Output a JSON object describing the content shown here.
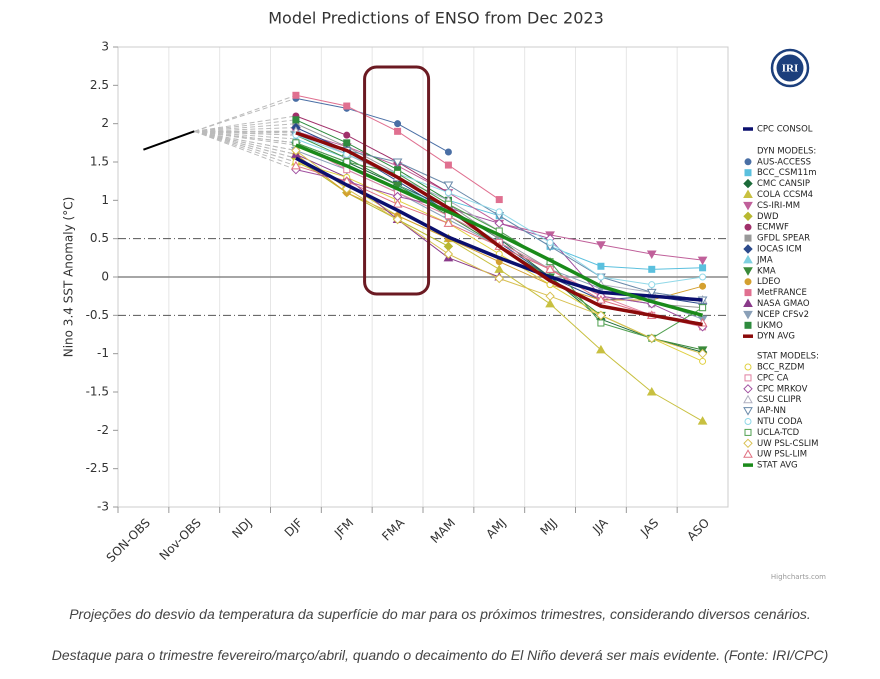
{
  "chart_data": {
    "type": "line",
    "title": "Model Predictions of ENSO from Dec 2023",
    "y_axis_label": "Nino 3.4 SST Anomaly (°C)",
    "credits": "Highcharts.com",
    "logo": "IRI",
    "categories": [
      "SON-OBS",
      "Nov-OBS",
      "NDJ",
      "DJF",
      "JFM",
      "FMA",
      "MAM",
      "AMJ",
      "MJJ",
      "JJA",
      "JAS",
      "ASO"
    ],
    "ylim": [
      -3,
      3
    ],
    "yticks": [
      -3,
      -2.5,
      -2,
      -1.5,
      -1,
      -0.5,
      0,
      0.5,
      1,
      1.5,
      2,
      2.5,
      3
    ],
    "grid": "vertical",
    "highlight": "FMA",
    "plot_lines": [
      {
        "value": 0,
        "style": "solid"
      },
      {
        "value": 0.5,
        "style": "dashdot"
      },
      {
        "value": -0.5,
        "style": "dashdot"
      }
    ],
    "observed": {
      "color": "#000000",
      "values": [
        1.66,
        1.9,
        null,
        null,
        null,
        null,
        null,
        null,
        null,
        null,
        null,
        null
      ]
    },
    "series": [
      {
        "name": "CPC CONSOL",
        "color": "#0a0f6e",
        "marker": "none",
        "thick": true,
        "values": [
          null,
          null,
          null,
          1.55,
          1.2,
          0.87,
          0.52,
          0.25,
          0.0,
          -0.2,
          -0.25,
          -0.3
        ]
      }
    ],
    "groups": [
      {
        "title": "DYN MODELS:",
        "series": [
          {
            "name": "AUS-ACCESS",
            "color": "#4a6fa5",
            "marker": "circle",
            "values": [
              null,
              null,
              null,
              2.33,
              2.2,
              2.0,
              1.63,
              null,
              null,
              null,
              null,
              null
            ]
          },
          {
            "name": "BCC_CSM11m",
            "color": "#5bc0de",
            "marker": "square",
            "values": [
              null,
              null,
              null,
              1.9,
              1.6,
              1.3,
              1.0,
              0.8,
              0.4,
              0.14,
              0.1,
              0.12
            ]
          },
          {
            "name": "CMC CANSIP",
            "color": "#1d6b3a",
            "marker": "diamond",
            "values": [
              null,
              null,
              null,
              1.75,
              1.5,
              1.2,
              0.9,
              0.5,
              0.0,
              -0.55,
              -0.8,
              -0.98
            ]
          },
          {
            "name": "COLA CCSM4",
            "color": "#c8c040",
            "marker": "triangle",
            "values": [
              null,
              null,
              null,
              1.5,
              1.2,
              0.8,
              0.5,
              0.1,
              -0.35,
              -0.95,
              -1.5,
              -1.88
            ]
          },
          {
            "name": "CS-IRI-MM",
            "color": "#c0609a",
            "marker": "triangle-down",
            "values": [
              null,
              null,
              null,
              1.9,
              1.7,
              1.45,
              1.1,
              0.7,
              0.55,
              0.42,
              0.3,
              0.22
            ]
          },
          {
            "name": "DWD",
            "color": "#b8b830",
            "marker": "diamond",
            "values": [
              null,
              null,
              null,
              1.55,
              1.1,
              0.75,
              0.4,
              null,
              null,
              null,
              null,
              null
            ]
          },
          {
            "name": "ECMWF",
            "color": "#a0306a",
            "marker": "circle",
            "values": [
              null,
              null,
              null,
              2.1,
              1.85,
              1.5,
              1.1,
              null,
              null,
              null,
              null,
              null
            ]
          },
          {
            "name": "GFDL SPEAR",
            "color": "#999999",
            "marker": "square",
            "values": [
              null,
              null,
              null,
              2.0,
              1.7,
              1.35,
              0.95,
              0.5,
              0.1,
              -0.25,
              -0.35,
              -0.4
            ]
          },
          {
            "name": "IOCAS ICM",
            "color": "#2c4a8c",
            "marker": "diamond",
            "values": [
              null,
              null,
              null,
              1.95,
              1.65,
              1.25,
              0.85,
              0.45,
              0.0,
              -0.3,
              -0.25,
              -0.35
            ]
          },
          {
            "name": "JMA",
            "color": "#7fd0e0",
            "marker": "triangle",
            "values": [
              null,
              null,
              null,
              1.8,
              1.55,
              1.2,
              0.85,
              0.45,
              0.1,
              null,
              null,
              null
            ]
          },
          {
            "name": "KMA",
            "color": "#3a8a3a",
            "marker": "triangle-down",
            "values": [
              null,
              null,
              null,
              1.85,
              1.55,
              1.2,
              0.8,
              0.4,
              0.0,
              -0.5,
              -0.8,
              -0.95
            ]
          },
          {
            "name": "LDEO",
            "color": "#d4a030",
            "marker": "circle",
            "values": [
              null,
              null,
              null,
              1.6,
              1.1,
              0.8,
              0.5,
              0.2,
              -0.1,
              -0.3,
              -0.3,
              -0.12
            ]
          },
          {
            "name": "MetFRANCE",
            "color": "#e07090",
            "marker": "square",
            "values": [
              null,
              null,
              null,
              2.37,
              2.23,
              1.9,
              1.46,
              1.01,
              null,
              null,
              null,
              null
            ]
          },
          {
            "name": "NASA GMAO",
            "color": "#8a3a8a",
            "marker": "triangle",
            "values": [
              null,
              null,
              null,
              1.6,
              1.3,
              0.75,
              0.25,
              0.0,
              null,
              null,
              null,
              null
            ]
          },
          {
            "name": "NCEP CFSv2",
            "color": "#8aa0b8",
            "marker": "triangle-down",
            "values": [
              null,
              null,
              null,
              1.65,
              1.4,
              1.1,
              0.75,
              0.4,
              0.1,
              -0.15,
              -0.3,
              -0.55
            ]
          },
          {
            "name": "UKMO",
            "color": "#2e8b3e",
            "marker": "square",
            "values": [
              null,
              null,
              null,
              2.05,
              1.75,
              1.4,
              1.0,
              null,
              null,
              null,
              null,
              null
            ]
          },
          {
            "name": "DYN AVG",
            "color": "#8b0a0a",
            "marker": "none",
            "thick": true,
            "values": [
              null,
              null,
              null,
              1.88,
              1.65,
              1.3,
              0.9,
              0.4,
              -0.05,
              -0.38,
              -0.5,
              -0.62
            ]
          }
        ]
      },
      {
        "title": "STAT MODELS:",
        "series": [
          {
            "name": "BCC_RZDM",
            "color": "#e0d040",
            "marker": "circle",
            "hollow": true,
            "values": [
              null,
              null,
              null,
              1.5,
              1.3,
              1.0,
              0.7,
              0.3,
              -0.1,
              -0.5,
              -0.8,
              -1.1
            ]
          },
          {
            "name": "CPC CA",
            "color": "#e080a0",
            "marker": "square",
            "hollow": true,
            "values": [
              null,
              null,
              null,
              1.75,
              1.4,
              1.1,
              0.8,
              0.45,
              0.1,
              -0.25,
              -0.5,
              -0.65
            ]
          },
          {
            "name": "CPC MRKOV",
            "color": "#a050a0",
            "marker": "diamond",
            "hollow": true,
            "values": [
              null,
              null,
              null,
              1.4,
              1.25,
              1.05,
              0.9,
              0.7,
              0.5,
              -0.25,
              -0.35,
              -0.65
            ]
          },
          {
            "name": "CSU CLIPR",
            "color": "#b0b0c0",
            "marker": "triangle",
            "hollow": true,
            "values": [
              null,
              null,
              null,
              1.9,
              1.6,
              1.3,
              1.0,
              0.6,
              0.2,
              -0.1,
              -0.2,
              -0.3
            ]
          },
          {
            "name": "IAP-NN",
            "color": "#6a8aaa",
            "marker": "triangle-down",
            "hollow": true,
            "values": [
              null,
              null,
              null,
              1.85,
              1.65,
              1.5,
              1.2,
              0.8,
              0.4,
              0.0,
              -0.2,
              -0.3
            ]
          },
          {
            "name": "NTU CODA",
            "color": "#90d8e8",
            "marker": "circle",
            "hollow": true,
            "values": [
              null,
              null,
              null,
              1.85,
              1.6,
              1.35,
              1.1,
              0.85,
              0.45,
              0.0,
              -0.1,
              0.0
            ]
          },
          {
            "name": "UCLA-TCD",
            "color": "#50a050",
            "marker": "square",
            "hollow": true,
            "values": [
              null,
              null,
              null,
              1.75,
              1.5,
              1.35,
              0.95,
              0.6,
              0.2,
              -0.6,
              -0.8,
              -0.4
            ]
          },
          {
            "name": "UW PSL-CSLIM",
            "color": "#d8c050",
            "marker": "diamond",
            "hollow": true,
            "values": [
              null,
              null,
              null,
              1.65,
              1.15,
              0.75,
              0.3,
              -0.02,
              -0.25,
              -0.5,
              -0.8,
              -1.0
            ]
          },
          {
            "name": "UW PSL-LIM",
            "color": "#e07080",
            "marker": "triangle",
            "hollow": true,
            "values": [
              null,
              null,
              null,
              1.45,
              1.25,
              0.95,
              0.7,
              0.4,
              0.1,
              -0.3,
              -0.5,
              -0.6
            ]
          },
          {
            "name": "STAT AVG",
            "color": "#1a8a1a",
            "marker": "none",
            "thick": true,
            "values": [
              null,
              null,
              null,
              1.72,
              1.45,
              1.15,
              0.85,
              0.55,
              0.22,
              -0.12,
              -0.32,
              -0.5
            ]
          }
        ]
      }
    ]
  },
  "captions": [
    "Projeções do desvio da temperatura da superfície do mar para os próximos trimestres, considerando diversos cenários.",
    "Destaque para o trimestre fevereiro/março/abril, quando o decaimento do El Niño deverá ser mais evidente. (Fonte: IRI/CPC)"
  ]
}
